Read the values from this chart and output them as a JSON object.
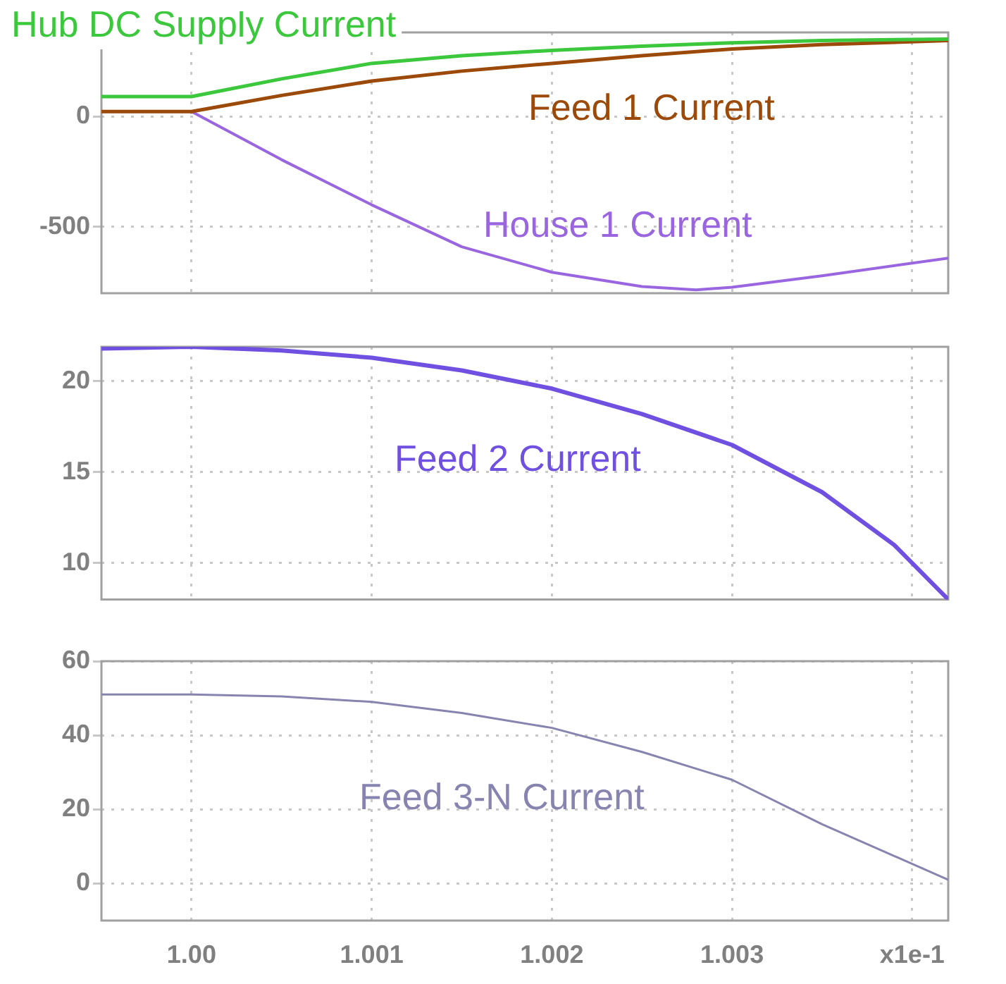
{
  "chart_data": [
    {
      "type": "line",
      "xlim": [
        0.9995,
        1.0042
      ],
      "xticks": [
        1.0,
        1.001,
        1.002,
        1.003,
        1.004
      ],
      "ylim": [
        -800,
        380
      ],
      "yticks": [
        -500,
        0
      ],
      "grid": true,
      "tick_labels": "y",
      "series": [
        {
          "name": "Hub DC Supply Current",
          "color": "#3cc83c",
          "x": [
            0.9995,
            1.0,
            1.0005,
            1.001,
            1.0015,
            1.002,
            1.0025,
            1.003,
            1.0035,
            1.0042
          ],
          "values": [
            90,
            90,
            170,
            240,
            275,
            299,
            318,
            333,
            343,
            350
          ]
        },
        {
          "name": "Feed 1 Current",
          "color": "#9c4a0a",
          "x": [
            0.9995,
            1.0,
            1.0005,
            1.001,
            1.0015,
            1.002,
            1.0025,
            1.003,
            1.0035,
            1.0042
          ],
          "values": [
            22,
            22,
            95,
            160,
            205,
            240,
            275,
            305,
            325,
            343
          ]
        },
        {
          "name": "House 1 Current",
          "color": "#9a66e0",
          "x": [
            0.9995,
            1.0,
            1.0005,
            1.001,
            1.0015,
            1.002,
            1.0025,
            1.0028,
            1.003,
            1.0035,
            1.0042
          ],
          "values": [
            22,
            22,
            -196,
            -400,
            -590,
            -705,
            -770,
            -785,
            -773,
            -721,
            -641
          ]
        }
      ]
    },
    {
      "type": "line",
      "xlim": [
        0.9995,
        1.0042
      ],
      "xticks": [
        1.0,
        1.001,
        1.002,
        1.003,
        1.004
      ],
      "ylim": [
        8,
        21.9
      ],
      "yticks": [
        10,
        15,
        20
      ],
      "grid": true,
      "tick_labels": "y",
      "series": [
        {
          "name": "Feed 2 Current",
          "color": "#7050e0",
          "x": [
            0.9995,
            1.0,
            1.0005,
            1.001,
            1.0015,
            1.002,
            1.0025,
            1.003,
            1.0035,
            1.0039,
            1.0042
          ],
          "values": [
            21.8,
            21.9,
            21.7,
            21.3,
            20.6,
            19.6,
            18.2,
            16.5,
            13.9,
            11.0,
            8.0
          ]
        }
      ]
    },
    {
      "type": "line",
      "xlim": [
        0.9995,
        1.0042
      ],
      "xticks": [
        {
          "value": 1.0,
          "label": "1.00"
        },
        1.001,
        1.002,
        1.003,
        {
          "value": 1.004,
          "label": "x1e-1"
        }
      ],
      "ylim": [
        -10,
        60
      ],
      "yticks": [
        0,
        20,
        40,
        60
      ],
      "grid": true,
      "series": [
        {
          "name": "Feed 3-N Current",
          "color": "#8884b0",
          "x": [
            0.9995,
            1.0,
            1.0005,
            1.001,
            1.0015,
            1.002,
            1.0025,
            1.003,
            1.0035,
            1.0042
          ],
          "values": [
            51,
            51,
            50.5,
            49,
            46,
            42,
            35.5,
            28,
            16,
            1
          ]
        }
      ]
    }
  ]
}
